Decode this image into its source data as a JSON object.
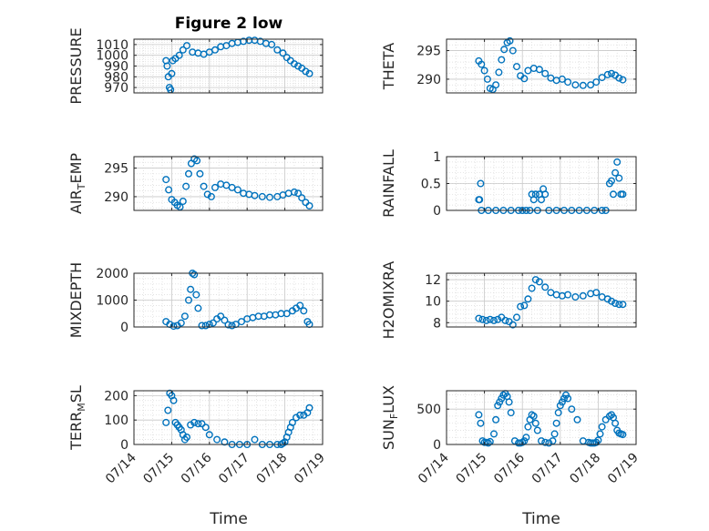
{
  "chart_data": {
    "type": "scatter",
    "title": "Figure 2 low",
    "xlabel": "Time",
    "x_tick_labels": [
      "07/14",
      "07/15",
      "07/16",
      "07/17",
      "07/18",
      "07/19"
    ],
    "marker_color": "#0072BD",
    "marker": "open-circle",
    "grid": true,
    "subplots": [
      {
        "name": "PRESSURE",
        "ylabel": "PRESSURE",
        "ylim": [
          965,
          1015
        ],
        "yticks": [
          970,
          980,
          990,
          1000,
          1010
        ],
        "series": [
          {
            "x": [
              0.85,
              0.88,
              0.91,
              0.94,
              0.97,
              1.0,
              1.03,
              1.1,
              1.2,
              1.3,
              1.4,
              1.55,
              1.7,
              1.85,
              2.0,
              2.15,
              2.3,
              2.45,
              2.6,
              2.75,
              2.9,
              3.05,
              3.2,
              3.35,
              3.5,
              3.65,
              3.8,
              3.95,
              4.05,
              4.15,
              4.25,
              4.35,
              4.45,
              4.55,
              4.65
            ],
            "y": [
              995,
              990,
              980,
              970,
              968,
              983,
              995,
              997,
              1000,
              1005,
              1009,
              1003,
              1002,
              1001,
              1003,
              1005,
              1008,
              1009,
              1011,
              1012,
              1013,
              1014,
              1014,
              1013,
              1011,
              1010,
              1005,
              1002,
              998,
              995,
              992,
              990,
              988,
              985,
              983
            ]
          }
        ]
      },
      {
        "name": "THETA",
        "ylabel": "THETA",
        "ylim": [
          287.6,
          297.0
        ],
        "yticks": [
          290,
          295
        ],
        "series": [
          {
            "x": [
              0.85,
              0.92,
              1.0,
              1.08,
              1.15,
              1.22,
              1.3,
              1.38,
              1.45,
              1.52,
              1.6,
              1.67,
              1.75,
              1.85,
              1.95,
              2.05,
              2.15,
              2.3,
              2.45,
              2.6,
              2.75,
              2.9,
              3.05,
              3.2,
              3.4,
              3.6,
              3.8,
              3.95,
              4.1,
              4.25,
              4.35,
              4.45,
              4.55,
              4.65
            ],
            "y": [
              293.2,
              292.6,
              291.5,
              290.0,
              288.4,
              288.2,
              289.0,
              291.2,
              293.4,
              295.2,
              296.4,
              296.7,
              295.0,
              292.2,
              290.6,
              290.1,
              291.5,
              291.9,
              291.7,
              291.0,
              290.2,
              289.8,
              290.0,
              289.5,
              289.0,
              288.9,
              289.0,
              289.5,
              290.3,
              290.8,
              291.0,
              290.7,
              290.2,
              289.9
            ]
          }
        ]
      },
      {
        "name": "AIR_TEMP",
        "ylabel": "AIR_TEMP",
        "ylim": [
          287.6,
          297.0
        ],
        "yticks": [
          290,
          295
        ],
        "series": [
          {
            "x": [
              0.85,
              0.92,
              1.0,
              1.08,
              1.15,
              1.22,
              1.3,
              1.38,
              1.45,
              1.52,
              1.6,
              1.67,
              1.75,
              1.85,
              1.95,
              2.05,
              2.15,
              2.3,
              2.45,
              2.6,
              2.75,
              2.9,
              3.05,
              3.2,
              3.4,
              3.6,
              3.8,
              3.95,
              4.1,
              4.25,
              4.35,
              4.45,
              4.55,
              4.65
            ],
            "y": [
              293.0,
              291.2,
              289.5,
              289.0,
              288.5,
              288.2,
              289.2,
              291.8,
              294.0,
              295.8,
              296.6,
              296.3,
              294.0,
              291.8,
              290.4,
              290.0,
              291.6,
              292.2,
              292.0,
              291.6,
              291.2,
              290.6,
              290.4,
              290.2,
              290.0,
              289.9,
              290.0,
              290.3,
              290.6,
              290.8,
              290.6,
              289.8,
              289.0,
              288.4
            ]
          }
        ]
      },
      {
        "name": "RAINFALL",
        "ylabel": "RAINFALL",
        "ylim": [
          0,
          1
        ],
        "yticks": [
          0,
          0.5,
          1
        ],
        "series": [
          {
            "x": [
              0.85,
              0.87,
              0.9,
              0.92,
              1.1,
              1.3,
              1.5,
              1.7,
              1.9,
              2.0,
              2.1,
              2.2,
              2.25,
              2.3,
              2.35,
              2.4,
              2.45,
              2.5,
              2.55,
              2.6,
              2.7,
              2.9,
              3.1,
              3.3,
              3.5,
              3.7,
              3.9,
              4.1,
              4.2,
              4.3,
              4.35,
              4.4,
              4.45,
              4.5,
              4.55,
              4.6,
              4.65
            ],
            "y": [
              0.2,
              0.2,
              0.5,
              0.0,
              0.0,
              0.0,
              0.0,
              0.0,
              0.0,
              0.0,
              0.0,
              0.0,
              0.3,
              0.2,
              0.3,
              0.0,
              0.3,
              0.2,
              0.4,
              0.3,
              0.0,
              0.0,
              0.0,
              0.0,
              0.0,
              0.0,
              0.0,
              0.0,
              0.0,
              0.5,
              0.55,
              0.3,
              0.7,
              0.9,
              0.6,
              0.3,
              0.3
            ]
          }
        ]
      },
      {
        "name": "MIXDEPTH",
        "ylabel": "MIXDEPTH",
        "ylim": [
          0,
          2000
        ],
        "yticks": [
          0,
          1000,
          2000
        ],
        "series": [
          {
            "x": [
              0.85,
              0.95,
              1.05,
              1.15,
              1.25,
              1.35,
              1.45,
              1.5,
              1.55,
              1.6,
              1.65,
              1.7,
              1.8,
              1.9,
              2.0,
              2.1,
              2.2,
              2.3,
              2.4,
              2.5,
              2.6,
              2.7,
              2.85,
              3.0,
              3.15,
              3.3,
              3.45,
              3.6,
              3.75,
              3.9,
              4.05,
              4.2,
              4.3,
              4.4,
              4.5,
              4.6,
              4.65
            ],
            "y": [
              200,
              100,
              30,
              50,
              150,
              400,
              1000,
              1400,
              2000,
              1950,
              1200,
              700,
              50,
              50,
              100,
              150,
              300,
              400,
              250,
              80,
              50,
              100,
              200,
              300,
              350,
              400,
              400,
              450,
              450,
              500,
              500,
              600,
              700,
              800,
              600,
              200,
              100
            ]
          }
        ]
      },
      {
        "name": "H2OMIXRA",
        "ylabel": "H2OMIXRA",
        "ylim": [
          7.6,
          12.6
        ],
        "yticks": [
          8,
          10,
          12
        ],
        "series": [
          {
            "x": [
              0.85,
              0.95,
              1.05,
              1.15,
              1.25,
              1.35,
              1.45,
              1.55,
              1.65,
              1.75,
              1.85,
              1.95,
              2.05,
              2.15,
              2.25,
              2.35,
              2.45,
              2.6,
              2.75,
              2.9,
              3.05,
              3.2,
              3.4,
              3.6,
              3.8,
              3.95,
              4.1,
              4.25,
              4.35,
              4.45,
              4.55,
              4.65
            ],
            "y": [
              8.4,
              8.3,
              8.2,
              8.3,
              8.2,
              8.3,
              8.5,
              8.2,
              8.1,
              7.8,
              8.5,
              9.5,
              9.6,
              10.2,
              11.2,
              12.0,
              11.8,
              11.3,
              10.8,
              10.6,
              10.5,
              10.6,
              10.4,
              10.5,
              10.7,
              10.8,
              10.4,
              10.2,
              10.0,
              9.8,
              9.7,
              9.7
            ]
          }
        ]
      },
      {
        "name": "TERR_MSL",
        "ylabel": "TERR_MSL",
        "ylim": [
          0,
          220
        ],
        "yticks": [
          0,
          100,
          200
        ],
        "series": [
          {
            "x": [
              0.85,
              0.9,
              0.95,
              1.0,
              1.05,
              1.1,
              1.15,
              1.2,
              1.25,
              1.3,
              1.35,
              1.4,
              1.5,
              1.6,
              1.7,
              1.8,
              1.9,
              2.0,
              2.2,
              2.4,
              2.6,
              2.8,
              3.0,
              3.2,
              3.4,
              3.6,
              3.8,
              3.9,
              3.95,
              4.0,
              4.05,
              4.1,
              4.15,
              4.2,
              4.3,
              4.4,
              4.5,
              4.6,
              4.65
            ],
            "y": [
              90,
              140,
              210,
              200,
              180,
              90,
              80,
              70,
              60,
              40,
              20,
              30,
              80,
              90,
              85,
              85,
              70,
              40,
              20,
              10,
              0,
              0,
              0,
              20,
              0,
              0,
              0,
              0,
              5,
              10,
              30,
              50,
              70,
              90,
              110,
              120,
              120,
              130,
              150
            ]
          }
        ]
      },
      {
        "name": "SUN_FLUX",
        "ylabel": "SUN_FLUX",
        "ylim": [
          0,
          760
        ],
        "yticks": [
          0,
          500
        ],
        "series": [
          {
            "x": [
              0.85,
              0.9,
              0.95,
              1.0,
              1.05,
              1.1,
              1.15,
              1.25,
              1.3,
              1.35,
              1.4,
              1.45,
              1.5,
              1.55,
              1.6,
              1.65,
              1.7,
              1.8,
              1.9,
              1.95,
              2.0,
              2.05,
              2.1,
              2.15,
              2.2,
              2.25,
              2.3,
              2.35,
              2.4,
              2.5,
              2.6,
              2.7,
              2.8,
              2.85,
              2.9,
              2.95,
              3.0,
              3.05,
              3.1,
              3.15,
              3.2,
              3.3,
              3.45,
              3.6,
              3.75,
              3.8,
              3.85,
              3.9,
              3.95,
              4.0,
              4.05,
              4.1,
              4.2,
              4.3,
              4.35,
              4.4,
              4.45,
              4.5,
              4.55,
              4.6,
              4.65
            ],
            "y": [
              420,
              300,
              50,
              30,
              30,
              20,
              40,
              150,
              350,
              550,
              600,
              650,
              700,
              720,
              680,
              600,
              450,
              50,
              20,
              20,
              30,
              50,
              100,
              250,
              350,
              420,
              400,
              300,
              200,
              50,
              30,
              20,
              50,
              150,
              300,
              450,
              550,
              600,
              650,
              700,
              650,
              500,
              350,
              50,
              30,
              20,
              20,
              20,
              30,
              60,
              150,
              250,
              350,
              400,
              420,
              380,
              300,
              200,
              160,
              150,
              140
            ]
          }
        ]
      }
    ]
  }
}
